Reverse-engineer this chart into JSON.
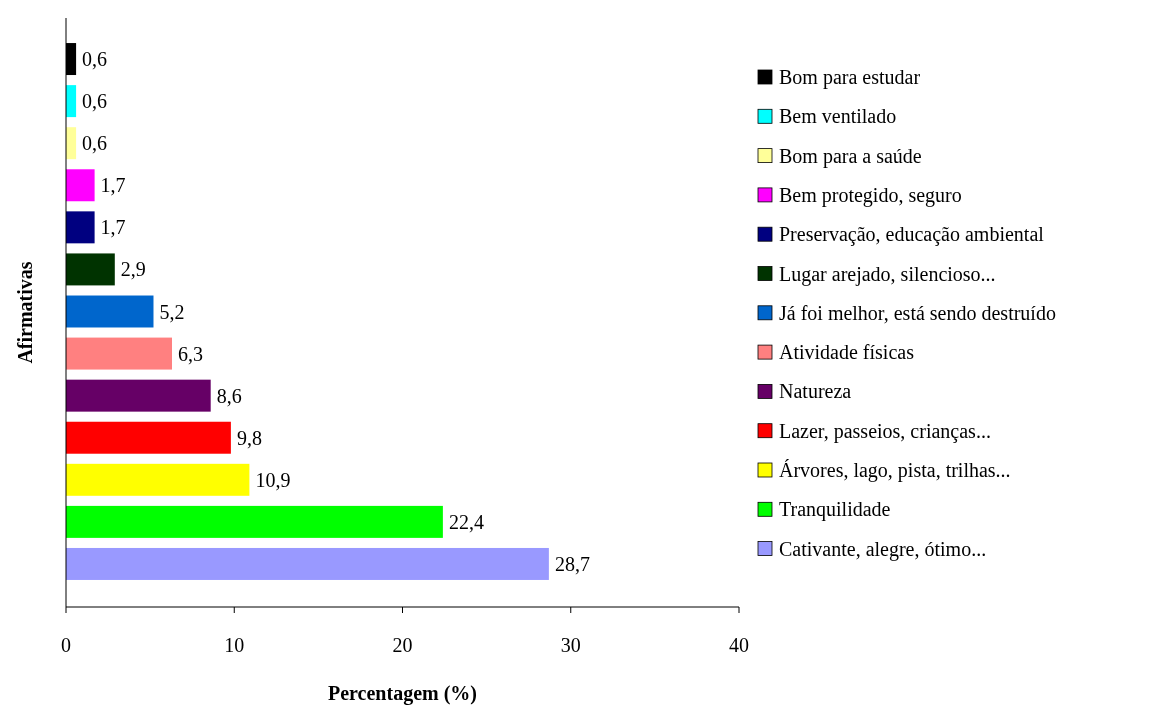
{
  "chart_data": {
    "type": "bar",
    "orientation": "horizontal",
    "xlabel": "Percentagem (%)",
    "ylabel": "Afirmativas",
    "categories": [
      null
    ],
    "series": [
      {
        "name": "Bom para estudar",
        "color": "#000000",
        "values": [
          0.6
        ],
        "value_labels": [
          "0,6"
        ]
      },
      {
        "name": "Bem ventilado",
        "color": "#00ffff",
        "values": [
          0.6
        ],
        "value_labels": [
          "0,6"
        ]
      },
      {
        "name": "Bom para a saúde",
        "color": "#ffff99",
        "values": [
          0.6
        ],
        "value_labels": [
          "0,6"
        ]
      },
      {
        "name": "Bem protegido, seguro",
        "color": "#ff00ff",
        "values": [
          1.7
        ],
        "value_labels": [
          "1,7"
        ]
      },
      {
        "name": "Preservação, educação ambiental",
        "color": "#000080",
        "values": [
          1.7
        ],
        "value_labels": [
          "1,7"
        ]
      },
      {
        "name": "Lugar arejado, silencioso...",
        "color": "#003300",
        "values": [
          2.9
        ],
        "value_labels": [
          "2,9"
        ]
      },
      {
        "name": "Já foi melhor, está sendo destruído",
        "color": "#0066cc",
        "values": [
          5.2
        ],
        "value_labels": [
          "5,2"
        ]
      },
      {
        "name": "Atividade físicas",
        "color": "#ff8080",
        "values": [
          6.3
        ],
        "value_labels": [
          "6,3"
        ]
      },
      {
        "name": "Natureza",
        "color": "#660066",
        "values": [
          8.6
        ],
        "value_labels": [
          "8,6"
        ]
      },
      {
        "name": "Lazer, passeios, crianças...",
        "color": "#ff0000",
        "values": [
          9.8
        ],
        "value_labels": [
          "9,8"
        ]
      },
      {
        "name": "Árvores, lago, pista, trilhas...",
        "color": "#ffff00",
        "values": [
          10.9
        ],
        "value_labels": [
          "10,9"
        ]
      },
      {
        "name": "Tranquilidade",
        "color": "#00ff00",
        "values": [
          22.4
        ],
        "value_labels": [
          "22,4"
        ]
      },
      {
        "name": "Cativante, alegre, ótimo...",
        "color": "#9999ff",
        "values": [
          28.7
        ],
        "value_labels": [
          "28,7"
        ]
      }
    ],
    "xlim": [
      0,
      40
    ],
    "xticks": [
      0,
      10,
      20,
      30,
      40
    ],
    "legend": "right"
  }
}
